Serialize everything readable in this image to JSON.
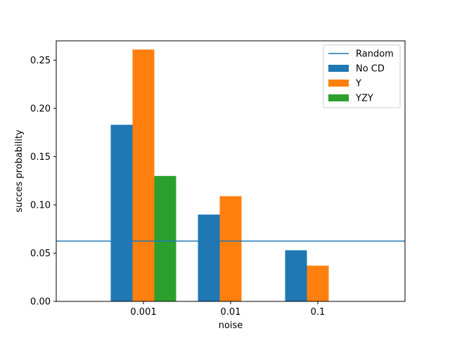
{
  "chart_data": {
    "type": "bar",
    "title": "",
    "xlabel": "noise",
    "ylabel": "succes probability",
    "categories": [
      "0.001",
      "0.01",
      "0.1"
    ],
    "ylim": [
      0,
      0.27
    ],
    "yticks": [
      "0.00",
      "0.05",
      "0.10",
      "0.15",
      "0.20",
      "0.25"
    ],
    "grid": false,
    "legend_position": "top-right",
    "series": [
      {
        "name": "No CD",
        "color": "#1f77b4",
        "values": [
          0.183,
          0.09,
          0.053
        ]
      },
      {
        "name": "Y",
        "color": "#ff7f0e",
        "values": [
          0.261,
          0.109,
          0.037
        ]
      },
      {
        "name": "YZY",
        "color": "#2ca02c",
        "values": [
          0.13,
          0,
          0
        ]
      }
    ],
    "reference_line": {
      "name": "Random",
      "color": "#1f77b4",
      "value": 0.0625
    }
  }
}
